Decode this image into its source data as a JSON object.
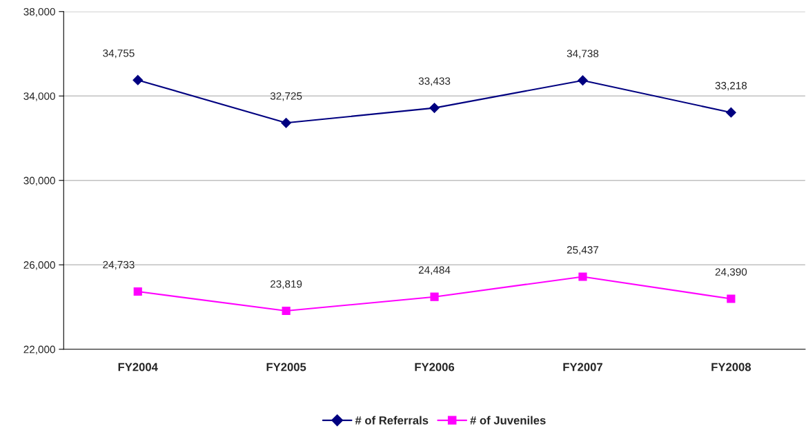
{
  "chart_data": {
    "type": "line",
    "categories": [
      "FY2004",
      "FY2005",
      "FY2006",
      "FY2007",
      "FY2008"
    ],
    "series": [
      {
        "name": "# of Referrals",
        "color": "#000080",
        "marker": "diamond",
        "values": [
          34755,
          32725,
          33433,
          34738,
          33218
        ],
        "value_labels": [
          "34,755",
          "32,725",
          "33,433",
          "34,738",
          "33,218"
        ]
      },
      {
        "name": "# of Juveniles",
        "color": "#ff00ff",
        "marker": "square",
        "values": [
          24733,
          23819,
          24484,
          25437,
          24390
        ],
        "value_labels": [
          "24,733",
          "23,819",
          "24,484",
          "25,437",
          "24,390"
        ]
      }
    ],
    "ylim": [
      22000,
      38000
    ],
    "yticks": [
      {
        "value": 22000,
        "label": "22,000"
      },
      {
        "value": 26000,
        "label": "26,000"
      },
      {
        "value": 30000,
        "label": "30,000"
      },
      {
        "value": 34000,
        "label": "34,000"
      },
      {
        "value": 38000,
        "label": "38,000"
      }
    ],
    "grid": "y",
    "legend": "bottom",
    "line_style": "solid"
  }
}
